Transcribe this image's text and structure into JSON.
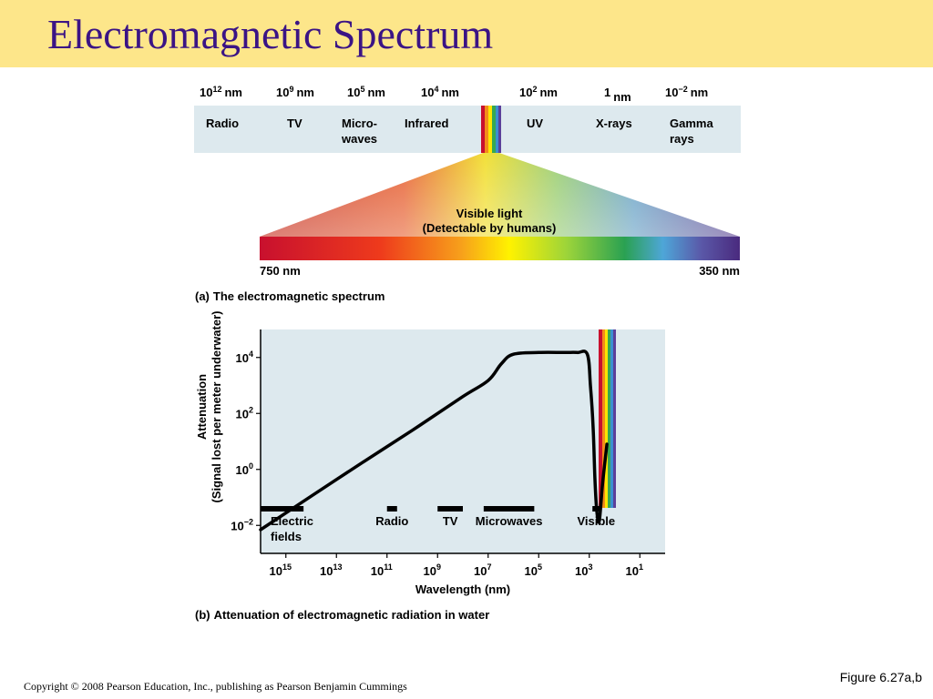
{
  "slide": {
    "title": "Electromagnetic Spectrum",
    "figure_label": "Figure 6.27a,b",
    "copyright": "Copyright © 2008 Pearson Education, Inc., publishing as Pearson Benjamin Cummings"
  },
  "colors": {
    "title_bar": "#fde68a",
    "title_text": "#3b1485",
    "panel_bg": "#dde9ee"
  },
  "spectrum": {
    "wavelengths": [
      {
        "base": "10",
        "exp": "12",
        "unit": "nm"
      },
      {
        "base": "10",
        "exp": "9",
        "unit": "nm"
      },
      {
        "base": "10",
        "exp": "5",
        "unit": "nm"
      },
      {
        "base": "10",
        "exp": "4",
        "unit": "nm"
      },
      {
        "base": "10",
        "exp": "2",
        "unit": "nm"
      },
      {
        "base": "1",
        "exp": "",
        "unit": "nm"
      },
      {
        "base": "10",
        "exp": "−2",
        "unit": "nm"
      }
    ],
    "bands": [
      {
        "line1": "Radio",
        "line2": ""
      },
      {
        "line1": "TV",
        "line2": ""
      },
      {
        "line1": "Micro-",
        "line2": "waves"
      },
      {
        "line1": "Infrared",
        "line2": ""
      },
      {
        "line1": "UV",
        "line2": ""
      },
      {
        "line1": "X-rays",
        "line2": ""
      },
      {
        "line1": "Gamma",
        "line2": "rays"
      }
    ],
    "visible_title": "Visible light",
    "visible_subtitle": "(Detectable by humans)",
    "left_nm": "750 nm",
    "right_nm": "350 nm",
    "caption_prefix": "(a)",
    "caption": "The electromagnetic spectrum"
  },
  "chart_data": {
    "type": "line",
    "ylabel_line1": "Attenuation",
    "ylabel_line2": "(Signal lost per meter underwater)",
    "xlabel": "Wavelength (nm)",
    "x_scale": "log10, reversed",
    "y_scale": "log10",
    "xlim": [
      1e+16,
      1.0
    ],
    "ylim": [
      0.001,
      100000.0
    ],
    "xticks": [
      {
        "base": "10",
        "exp": "15"
      },
      {
        "base": "10",
        "exp": "13"
      },
      {
        "base": "10",
        "exp": "11"
      },
      {
        "base": "10",
        "exp": "9"
      },
      {
        "base": "10",
        "exp": "7"
      },
      {
        "base": "10",
        "exp": "5"
      },
      {
        "base": "10",
        "exp": "3"
      },
      {
        "base": "10",
        "exp": "1"
      }
    ],
    "yticks": [
      {
        "base": "10",
        "exp": "4"
      },
      {
        "base": "10",
        "exp": "2"
      },
      {
        "base": "10",
        "exp": "0"
      },
      {
        "base": "10",
        "exp": "−2"
      }
    ],
    "series": [
      {
        "x": [
          1e+16,
          100000000000000.0,
          1000000000000.0,
          10000000000.0,
          100000000.0,
          10000000.0,
          3000000.0,
          1000000.0,
          100000.0,
          10000.0,
          3000.0,
          1200.0,
          900,
          700,
          600,
          500,
          400,
          300,
          200
        ],
        "y": [
          0.007,
          0.11,
          1.7,
          25,
          400,
          1500,
          6000,
          13000,
          15000,
          15000,
          15000,
          13000,
          1000,
          30,
          0.5,
          0.03,
          0.015,
          0.3,
          8
        ]
      }
    ],
    "bands": [
      {
        "label1": "Electric",
        "label2": "fields",
        "from": 1e+16,
        "to": 200000000000000.0
      },
      {
        "label1": "Radio",
        "label2": "",
        "from": 100000000000.0,
        "to": 40000000000.0
      },
      {
        "label1": "TV",
        "label2": "",
        "from": 1000000000.0,
        "to": 100000000.0
      },
      {
        "label1": "Microwaves",
        "label2": "",
        "from": 15000000.0,
        "to": 150000.0
      },
      {
        "label1": "Visible",
        "label2": "",
        "from": 750,
        "to": 380
      }
    ],
    "caption_prefix": "(b)",
    "caption": "Attenuation of electromagnetic radiation in water"
  }
}
